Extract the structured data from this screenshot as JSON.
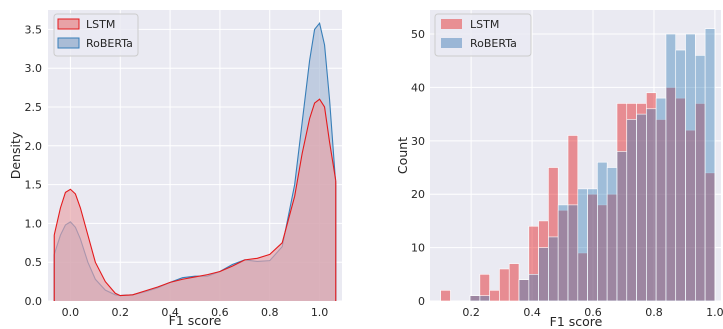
{
  "chart_data": [
    {
      "type": "area",
      "xlabel": "F1 score",
      "ylabel": "Density",
      "xlim": [
        -0.09,
        1.09
      ],
      "ylim": [
        0,
        3.75
      ],
      "xticks": [
        0.0,
        0.2,
        0.4,
        0.6,
        0.8,
        1.0
      ],
      "xtick_labels": [
        "0.0",
        "0.2",
        "0.4",
        "0.6",
        "0.8",
        "1.0"
      ],
      "yticks": [
        0,
        0.5,
        1.0,
        1.5,
        2.0,
        2.5,
        3.0,
        3.5
      ],
      "ytick_labels": [
        "0.0",
        "0.5",
        "1.0",
        "1.5",
        "2.0",
        "2.5",
        "3.0",
        "3.5"
      ],
      "grid": true,
      "legend_position": "top-left",
      "series": [
        {
          "name": "LSTM",
          "color": "#e41a1c",
          "fill": "#e8a2a6",
          "x": [
            -0.065,
            -0.04,
            -0.02,
            0.0,
            0.02,
            0.04,
            0.07,
            0.1,
            0.14,
            0.18,
            0.2,
            0.25,
            0.3,
            0.35,
            0.4,
            0.45,
            0.5,
            0.55,
            0.6,
            0.65,
            0.7,
            0.75,
            0.8,
            0.85,
            0.9,
            0.93,
            0.96,
            0.98,
            1.0,
            1.02,
            1.04,
            1.065
          ],
          "y": [
            0.85,
            1.2,
            1.4,
            1.44,
            1.38,
            1.2,
            0.85,
            0.5,
            0.25,
            0.1,
            0.07,
            0.08,
            0.13,
            0.18,
            0.24,
            0.28,
            0.31,
            0.34,
            0.38,
            0.45,
            0.53,
            0.55,
            0.6,
            0.75,
            1.35,
            1.9,
            2.35,
            2.55,
            2.6,
            2.5,
            2.05,
            1.55
          ]
        },
        {
          "name": "RoBERTa",
          "color": "#377eb8",
          "fill": "#a9bcd6",
          "x": [
            -0.065,
            -0.04,
            -0.02,
            0.0,
            0.02,
            0.04,
            0.07,
            0.1,
            0.14,
            0.18,
            0.2,
            0.25,
            0.3,
            0.35,
            0.4,
            0.45,
            0.5,
            0.55,
            0.6,
            0.65,
            0.7,
            0.75,
            0.8,
            0.85,
            0.9,
            0.93,
            0.96,
            0.98,
            1.0,
            1.02,
            1.04,
            1.065
          ],
          "y": [
            0.6,
            0.85,
            0.98,
            1.02,
            0.95,
            0.8,
            0.5,
            0.28,
            0.14,
            0.08,
            0.07,
            0.08,
            0.12,
            0.17,
            0.24,
            0.3,
            0.32,
            0.32,
            0.38,
            0.47,
            0.53,
            0.51,
            0.52,
            0.7,
            1.5,
            2.3,
            3.1,
            3.5,
            3.58,
            3.3,
            2.6,
            1.5
          ]
        }
      ]
    },
    {
      "type": "bar",
      "xlabel": "F1 score",
      "ylabel": "Count",
      "xlim": [
        0.065,
        1.02
      ],
      "ylim": [
        0,
        54.5
      ],
      "xticks": [
        0.2,
        0.4,
        0.6,
        0.8,
        1.0
      ],
      "xtick_labels": [
        "0.2",
        "0.4",
        "0.6",
        "0.8",
        "1.0"
      ],
      "yticks": [
        0,
        10,
        20,
        30,
        40,
        50
      ],
      "ytick_labels": [
        "0",
        "10",
        "20",
        "30",
        "40",
        "50"
      ],
      "grid": true,
      "legend_position": "top-left",
      "bin_edges": [
        0.1,
        0.1321,
        0.1643,
        0.1964,
        0.2286,
        0.2607,
        0.2929,
        0.325,
        0.3571,
        0.3893,
        0.4214,
        0.4536,
        0.4857,
        0.5179,
        0.55,
        0.5821,
        0.6143,
        0.6464,
        0.6786,
        0.7107,
        0.7429,
        0.775,
        0.8071,
        0.8393,
        0.8714,
        0.9036,
        0.9357,
        0.9679,
        1.0
      ],
      "series": [
        {
          "name": "LSTM",
          "color": "#e41a1c",
          "values": [
            2,
            0,
            0,
            1,
            5,
            2,
            6,
            7,
            4,
            14,
            15,
            25,
            17,
            31,
            9,
            20,
            18,
            20,
            37,
            37,
            37,
            39,
            34,
            40,
            38,
            32,
            37,
            24
          ]
        },
        {
          "name": "RoBERTa",
          "color": "#377eb8",
          "values": [
            0,
            0,
            0,
            1,
            1,
            0,
            0,
            0,
            4,
            5,
            10,
            12,
            18,
            18,
            21,
            21,
            26,
            25,
            28,
            34,
            35,
            36,
            38,
            50,
            47,
            50,
            46,
            51
          ]
        }
      ]
    }
  ]
}
